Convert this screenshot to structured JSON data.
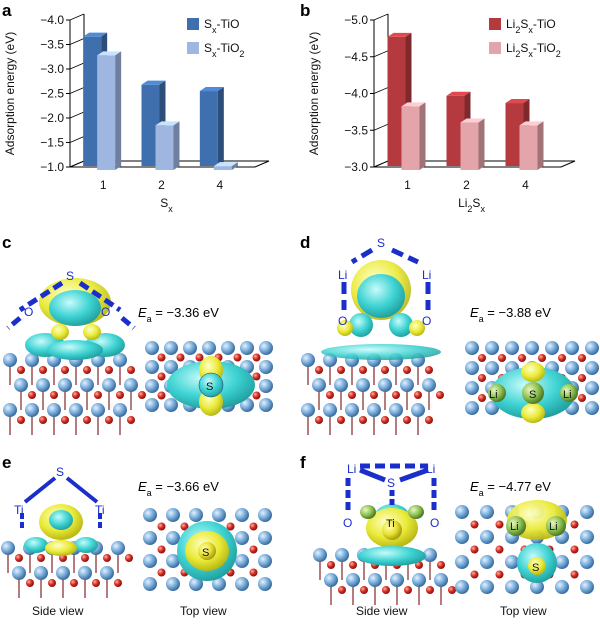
{
  "chart_data": [
    {
      "panel": "a",
      "type": "bar",
      "categories": [
        "1",
        "2",
        "4"
      ],
      "xlabel": "S",
      "xlabel_sub": "x",
      "ylabel": "Adsorption energy (eV)",
      "ylim": [
        -4.0,
        -1.0
      ],
      "inverted_y": true,
      "yticks": [
        "-4.0",
        "-3.5",
        "-3.0",
        "-2.5",
        "-2.0",
        "-1.5",
        "-1.0"
      ],
      "series": [
        {
          "name_main": "S",
          "name_sub": "x",
          "name_rest": "-TiO",
          "name_sub2": "",
          "values": [
            -3.66,
            -2.68,
            -2.55
          ],
          "color": "#3f6fad"
        },
        {
          "name_main": "S",
          "name_sub": "x",
          "name_rest": "-TiO",
          "name_sub2": "2",
          "values": [
            -3.36,
            -1.93,
            -1.1
          ],
          "color": "#9fb6e0"
        }
      ],
      "legend_position": "top-right"
    },
    {
      "panel": "b",
      "type": "bar",
      "categories": [
        "1",
        "2",
        "4"
      ],
      "xlabel": "Li",
      "xlabel_sub": "2",
      "xlabel_rest": "S",
      "xlabel_sub2": "x",
      "ylabel": "Adsorption energy (eV)",
      "ylim": [
        -5.0,
        -3.0
      ],
      "inverted_y": true,
      "yticks": [
        "-5.0",
        "-4.5",
        "-4.0",
        "-3.5",
        "-3.0"
      ],
      "series": [
        {
          "name_main": "Li",
          "name_sub": "2",
          "name_rest": "S",
          "name_sub2": "x",
          "name_rest2": "-TiO",
          "name_sub3": "",
          "values": [
            -4.77,
            -3.97,
            -3.87
          ],
          "color": "#b53a3f"
        },
        {
          "name_main": "Li",
          "name_sub": "2",
          "name_rest": "S",
          "name_sub2": "x",
          "name_rest2": "-TiO",
          "name_sub3": "2",
          "values": [
            -3.88,
            -3.66,
            -3.62
          ],
          "color": "#e3a5aa"
        }
      ],
      "legend_position": "top-right"
    }
  ],
  "panels": {
    "c": {
      "letter": "c",
      "ea_symbol": "E",
      "ea_sub": "a",
      "ea_value": " = −3.36 eV",
      "atoms": {
        "s": "S",
        "o1": "O",
        "o2": "O",
        "s_top": "S"
      }
    },
    "d": {
      "letter": "d",
      "ea_symbol": "E",
      "ea_sub": "a",
      "ea_value": " = −3.88 eV",
      "atoms": {
        "s": "S",
        "li1": "Li",
        "li2": "Li",
        "o1": "O",
        "o2": "O",
        "li_top1": "Li",
        "s_top": "S",
        "li_top2": "Li"
      }
    },
    "e": {
      "letter": "e",
      "ea_symbol": "E",
      "ea_sub": "a",
      "ea_value": " = −3.66 eV",
      "atoms": {
        "s": "S",
        "ti1": "Ti",
        "ti2": "Ti",
        "s_top": "S"
      }
    },
    "f": {
      "letter": "f",
      "ea_symbol": "E",
      "ea_sub": "a",
      "ea_value": " = −4.77 eV",
      "atoms": {
        "li1": "Li",
        "s": "S",
        "li2": "Li",
        "o1": "O",
        "ti": "Ti",
        "o2": "O",
        "li_top1": "Li",
        "li_top2": "Li",
        "s_top": "S"
      }
    }
  },
  "views": {
    "side": "Side view",
    "top": "Top view"
  },
  "colors": {
    "ti_atom": "#6fa4d6",
    "o_atom": "#d22a22",
    "isosurface_cyan": "#38d0d0",
    "isosurface_yellow": "#e6e630",
    "bond_blue": "#1a2ecc"
  }
}
